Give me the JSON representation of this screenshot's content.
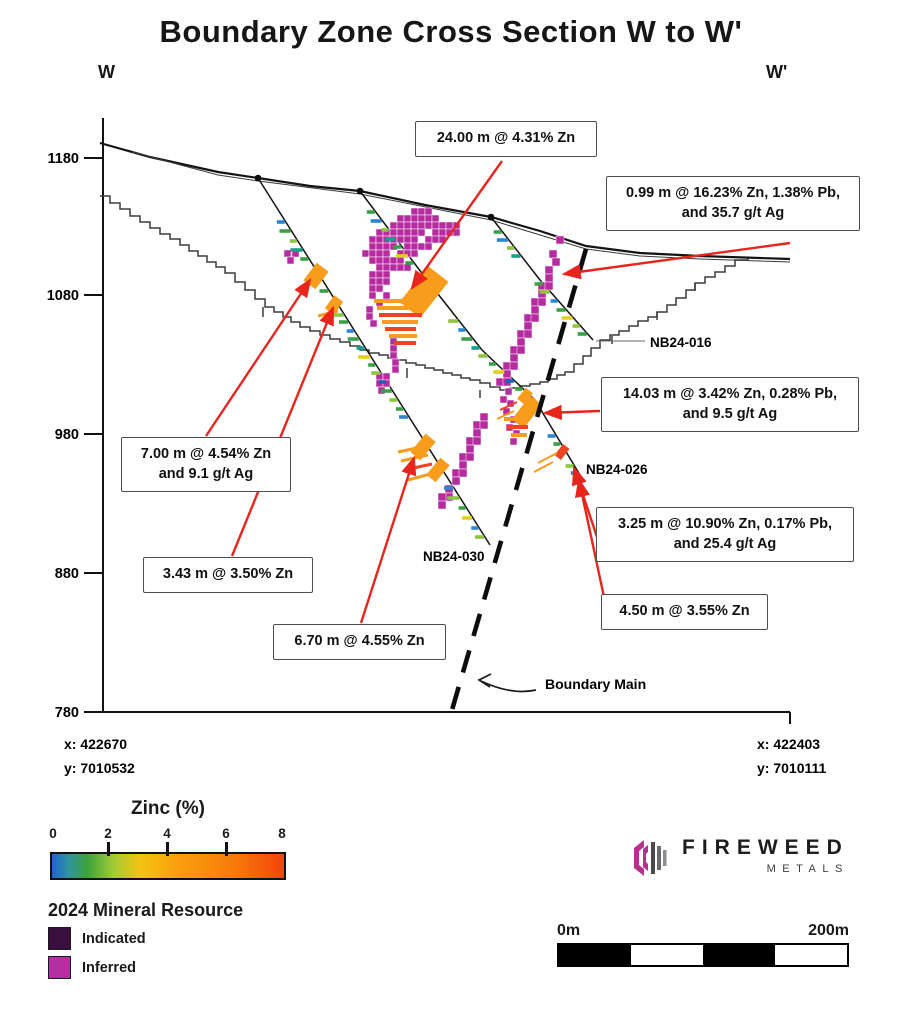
{
  "title": "Boundary Zone Cross Section W to W'",
  "section": {
    "left_marker": "W",
    "right_marker": "W'"
  },
  "axis": {
    "elevation_ticks": [
      "1180",
      "1080",
      "980",
      "880",
      "780"
    ]
  },
  "corners": {
    "left": {
      "x": "x: 422670",
      "y": "y: 7010532"
    },
    "right": {
      "x": "x: 422403",
      "y": "y: 7010111"
    }
  },
  "drillholes": [
    {
      "id": "NB24-016"
    },
    {
      "id": "NB24-026"
    },
    {
      "id": "NB24-030"
    }
  ],
  "fault_label": "Boundary Main",
  "callouts": [
    {
      "lines": [
        "24.00 m @ 4.31% Zn",
        ""
      ]
    },
    {
      "lines": [
        "0.99 m @ 16.23% Zn, 1.38% Pb,",
        "and 35.7 g/t Ag"
      ]
    },
    {
      "lines": [
        "14.03 m @ 3.42% Zn, 0.28% Pb,",
        "and 9.5 g/t Ag"
      ]
    },
    {
      "lines": [
        "3.25 m @ 10.90% Zn, 0.17% Pb,",
        "and 25.4 g/t Ag"
      ]
    },
    {
      "lines": [
        "4.50 m @ 3.55% Zn",
        ""
      ]
    },
    {
      "lines": [
        "7.00 m @ 4.54% Zn",
        "and 9.1 g/t Ag"
      ]
    },
    {
      "lines": [
        "3.43 m @ 3.50% Zn",
        ""
      ]
    },
    {
      "lines": [
        "6.70 m @ 4.55% Zn",
        ""
      ]
    }
  ],
  "legend_zinc": {
    "title": "Zinc (%)",
    "ticks": [
      "0",
      "2",
      "4",
      "6",
      "8"
    ]
  },
  "legend_resource": {
    "title": "2024 Mineral Resource",
    "items": [
      {
        "label": "Indicated",
        "color": "#3A0F3D"
      },
      {
        "label": "Inferred",
        "color": "#B52FA2"
      }
    ]
  },
  "logo": {
    "name": "FIREWEED",
    "sub": "METALS"
  },
  "scalebar": {
    "left": "0m",
    "right": "200m"
  },
  "colors": {
    "inferred": "#B62BA0",
    "indicated": "#3A0F3D",
    "arrow_red": "#E8251D",
    "intercept_orange": "#F89C1B",
    "intercept_red": "#EE4423",
    "grade_blue": "#2B87D1",
    "grade_green": "#3AA048",
    "grade_lightgreen": "#8FC43E",
    "grade_teal": "#18A08C",
    "grade_yellow": "#E3CF1E",
    "grade_darkblue": "#1A5FB8"
  }
}
